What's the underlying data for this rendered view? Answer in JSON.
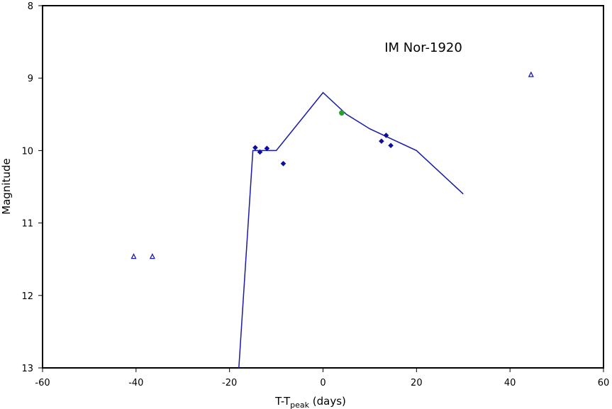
{
  "chart_data": {
    "type": "scatter",
    "title": "IM Nor-1920",
    "xlabel": {
      "main": "T-T",
      "sub": "peak",
      "suffix": " (days)"
    },
    "ylabel": "Magnitude",
    "xlim": [
      -60,
      60
    ],
    "ylim": [
      8,
      13
    ],
    "y_inverted": true,
    "x_ticks": [
      -60,
      -40,
      -20,
      0,
      20,
      40,
      60
    ],
    "y_ticks": [
      8,
      9,
      10,
      11,
      12,
      13
    ],
    "grid": false,
    "series": [
      {
        "type": "line",
        "color": "#1a1aa6",
        "points": [
          [
            -18,
            13
          ],
          [
            -15,
            10
          ],
          [
            -10,
            10
          ],
          [
            0,
            9.2
          ],
          [
            5,
            9.5
          ],
          [
            10,
            9.7
          ],
          [
            20,
            10
          ],
          [
            30,
            10.6
          ]
        ]
      },
      {
        "type": "scatter",
        "marker": "diamond",
        "color": "#0d0d9e",
        "points": [
          [
            -14.5,
            9.96
          ],
          [
            -13.5,
            10.02
          ],
          [
            -12,
            9.97
          ],
          [
            -8.5,
            10.18
          ],
          [
            12.5,
            9.87
          ],
          [
            13.5,
            9.79
          ],
          [
            14.5,
            9.93
          ]
        ]
      },
      {
        "type": "scatter",
        "marker": "circle",
        "color": "#2ca02c",
        "points": [
          [
            4,
            9.48
          ]
        ]
      },
      {
        "type": "scatter",
        "marker": "triangle",
        "color": "#1a1aa6",
        "points": [
          [
            -40.5,
            11.46
          ],
          [
            -36.5,
            11.46
          ],
          [
            44.5,
            8.95
          ]
        ]
      }
    ]
  }
}
